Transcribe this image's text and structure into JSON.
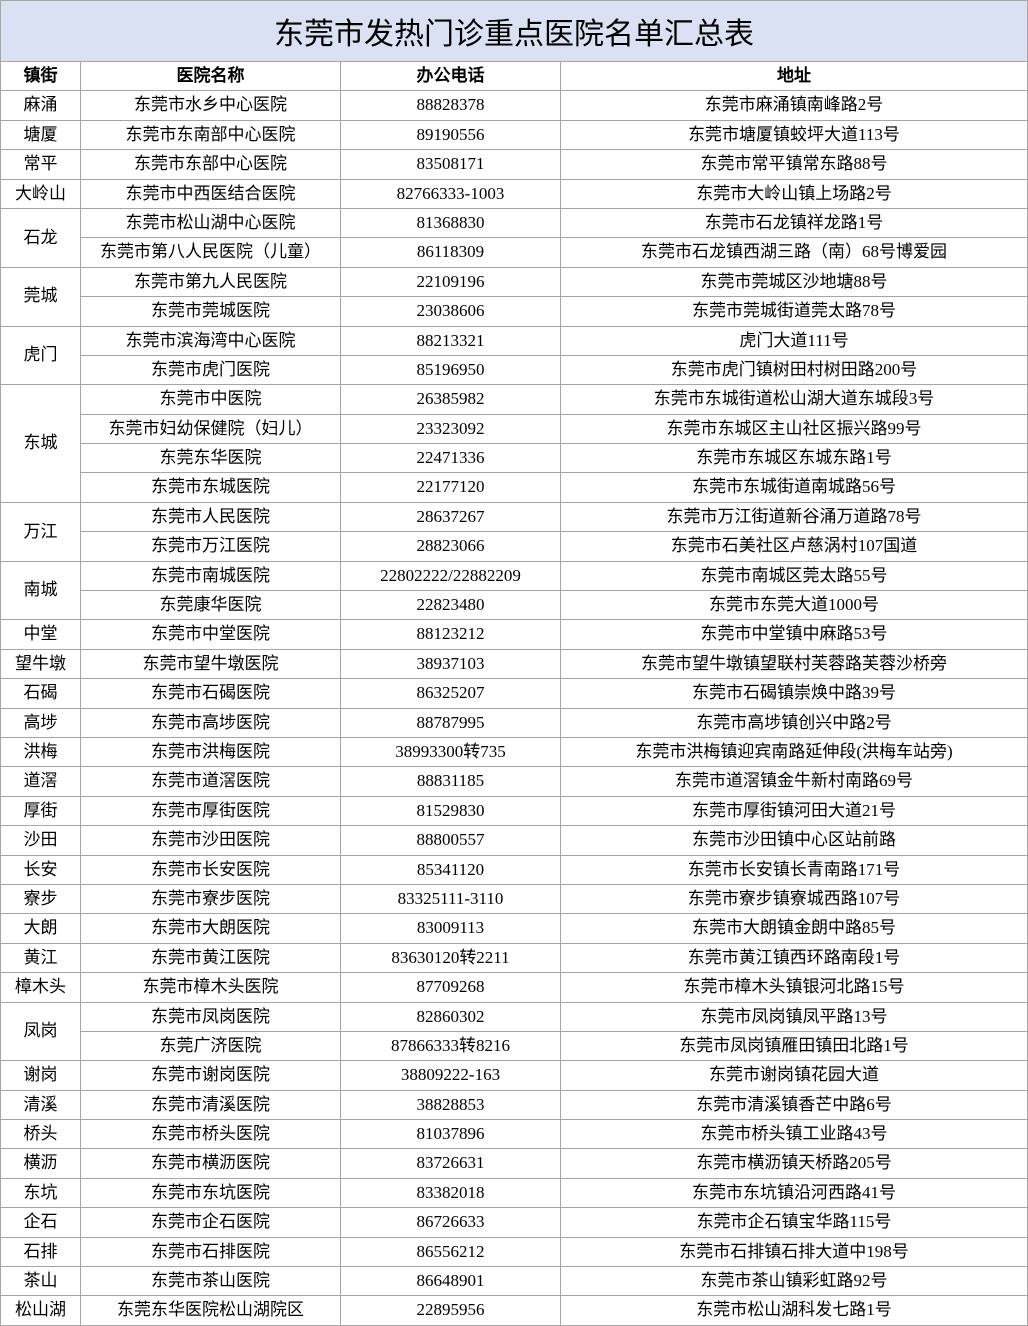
{
  "title": "东莞市发热门诊重点医院名单汇总表",
  "columns": [
    "镇街",
    "医院名称",
    "办公电话",
    "地址"
  ],
  "towns": [
    {
      "name": "麻涌",
      "hospitals": [
        {
          "name": "东莞市水乡中心医院",
          "phone": "88828378",
          "addr": "东莞市麻涌镇南峰路2号"
        }
      ]
    },
    {
      "name": "塘厦",
      "hospitals": [
        {
          "name": "东莞市东南部中心医院",
          "phone": "89190556",
          "addr": "东莞市塘厦镇蛟坪大道113号"
        }
      ]
    },
    {
      "name": "常平",
      "hospitals": [
        {
          "name": "东莞市东部中心医院",
          "phone": "83508171",
          "addr": "东莞市常平镇常东路88号"
        }
      ]
    },
    {
      "name": "大岭山",
      "hospitals": [
        {
          "name": "东莞市中西医结合医院",
          "phone": "82766333-1003",
          "addr": "东莞市大岭山镇上场路2号"
        }
      ]
    },
    {
      "name": "石龙",
      "hospitals": [
        {
          "name": "东莞市松山湖中心医院",
          "phone": "81368830",
          "addr": "东莞市石龙镇祥龙路1号"
        },
        {
          "name": "东莞市第八人民医院（儿童）",
          "phone": "86118309",
          "addr": "东莞市石龙镇西湖三路（南）68号博爱园"
        }
      ]
    },
    {
      "name": "莞城",
      "hospitals": [
        {
          "name": "东莞市第九人民医院",
          "phone": "22109196",
          "addr": "东莞市莞城区沙地塘88号"
        },
        {
          "name": "东莞市莞城医院",
          "phone": "23038606",
          "addr": "东莞市莞城街道莞太路78号"
        }
      ]
    },
    {
      "name": "虎门",
      "hospitals": [
        {
          "name": "东莞市滨海湾中心医院",
          "phone": "88213321",
          "addr": "虎门大道111号"
        },
        {
          "name": "东莞市虎门医院",
          "phone": "85196950",
          "addr": "东莞市虎门镇树田村树田路200号"
        }
      ]
    },
    {
      "name": "东城",
      "hospitals": [
        {
          "name": "东莞市中医院",
          "phone": "26385982",
          "addr": "东莞市东城街道松山湖大道东城段3号"
        },
        {
          "name": "东莞市妇幼保健院（妇儿）",
          "phone": "23323092",
          "addr": "东莞市东城区主山社区振兴路99号"
        },
        {
          "name": "东莞东华医院",
          "phone": "22471336",
          "addr": "东莞市东城区东城东路1号"
        },
        {
          "name": "东莞市东城医院",
          "phone": "22177120",
          "addr": "东莞市东城街道南城路56号"
        }
      ]
    },
    {
      "name": "万江",
      "hospitals": [
        {
          "name": "东莞市人民医院",
          "phone": "28637267",
          "addr": "东莞市万江街道新谷涌万道路78号"
        },
        {
          "name": "东莞市万江医院",
          "phone": "28823066",
          "addr": "东莞市石美社区卢慈涡村107国道"
        }
      ]
    },
    {
      "name": "南城",
      "hospitals": [
        {
          "name": "东莞市南城医院",
          "phone": "22802222/22882209",
          "addr": "东莞市南城区莞太路55号"
        },
        {
          "name": "东莞康华医院",
          "phone": "22823480",
          "addr": "东莞市东莞大道1000号"
        }
      ]
    },
    {
      "name": "中堂",
      "hospitals": [
        {
          "name": "东莞市中堂医院",
          "phone": "88123212",
          "addr": "东莞市中堂镇中麻路53号"
        }
      ]
    },
    {
      "name": "望牛墩",
      "hospitals": [
        {
          "name": "东莞市望牛墩医院",
          "phone": "38937103",
          "addr": "东莞市望牛墩镇望联村芙蓉路芙蓉沙桥旁"
        }
      ]
    },
    {
      "name": "石碣",
      "hospitals": [
        {
          "name": "东莞市石碣医院",
          "phone": "86325207",
          "addr": "东莞市石碣镇崇焕中路39号"
        }
      ]
    },
    {
      "name": "高埗",
      "hospitals": [
        {
          "name": "东莞市高埗医院",
          "phone": "88787995",
          "addr": "东莞市高埗镇创兴中路2号"
        }
      ]
    },
    {
      "name": "洪梅",
      "hospitals": [
        {
          "name": "东莞市洪梅医院",
          "phone": "38993300转735",
          "addr": "东莞市洪梅镇迎宾南路延伸段(洪梅车站旁)"
        }
      ]
    },
    {
      "name": "道滘",
      "hospitals": [
        {
          "name": "东莞市道滘医院",
          "phone": "88831185",
          "addr": "东莞市道滘镇金牛新村南路69号"
        }
      ]
    },
    {
      "name": "厚街",
      "hospitals": [
        {
          "name": "东莞市厚街医院",
          "phone": "81529830",
          "addr": "东莞市厚街镇河田大道21号"
        }
      ]
    },
    {
      "name": "沙田",
      "hospitals": [
        {
          "name": "东莞市沙田医院",
          "phone": "88800557",
          "addr": "东莞市沙田镇中心区站前路"
        }
      ]
    },
    {
      "name": "长安",
      "hospitals": [
        {
          "name": "东莞市长安医院",
          "phone": "85341120",
          "addr": "东莞市长安镇长青南路171号"
        }
      ]
    },
    {
      "name": "寮步",
      "hospitals": [
        {
          "name": "东莞市寮步医院",
          "phone": "83325111-3110",
          "addr": "东莞市寮步镇寮城西路107号"
        }
      ]
    },
    {
      "name": "大朗",
      "hospitals": [
        {
          "name": "东莞市大朗医院",
          "phone": "83009113",
          "addr": "东莞市大朗镇金朗中路85号"
        }
      ]
    },
    {
      "name": "黄江",
      "hospitals": [
        {
          "name": "东莞市黄江医院",
          "phone": "83630120转2211",
          "addr": "东莞市黄江镇西环路南段1号"
        }
      ]
    },
    {
      "name": "樟木头",
      "hospitals": [
        {
          "name": "东莞市樟木头医院",
          "phone": "87709268",
          "addr": "东莞市樟木头镇银河北路15号"
        }
      ]
    },
    {
      "name": "凤岗",
      "hospitals": [
        {
          "name": "东莞市凤岗医院",
          "phone": "82860302",
          "addr": "东莞市凤岗镇凤平路13号"
        },
        {
          "name": "东莞广济医院",
          "phone": "87866333转8216",
          "addr": "东莞市凤岗镇雁田镇田北路1号"
        }
      ]
    },
    {
      "name": "谢岗",
      "hospitals": [
        {
          "name": "东莞市谢岗医院",
          "phone": "38809222-163",
          "addr": "东莞市谢岗镇花园大道"
        }
      ]
    },
    {
      "name": "清溪",
      "hospitals": [
        {
          "name": "东莞市清溪医院",
          "phone": "38828853",
          "addr": "东莞市清溪镇香芒中路6号"
        }
      ]
    },
    {
      "name": "桥头",
      "hospitals": [
        {
          "name": "东莞市桥头医院",
          "phone": "81037896",
          "addr": "东莞市桥头镇工业路43号"
        }
      ]
    },
    {
      "name": "横沥",
      "hospitals": [
        {
          "name": "东莞市横沥医院",
          "phone": "83726631",
          "addr": "东莞市横沥镇天桥路205号"
        }
      ]
    },
    {
      "name": "东坑",
      "hospitals": [
        {
          "name": "东莞市东坑医院",
          "phone": "83382018",
          "addr": "东莞市东坑镇沿河西路41号"
        }
      ]
    },
    {
      "name": "企石",
      "hospitals": [
        {
          "name": "东莞市企石医院",
          "phone": "86726633",
          "addr": "东莞市企石镇宝华路115号"
        }
      ]
    },
    {
      "name": "石排",
      "hospitals": [
        {
          "name": "东莞市石排医院",
          "phone": "86556212",
          "addr": "东莞市石排镇石排大道中198号"
        }
      ]
    },
    {
      "name": "茶山",
      "hospitals": [
        {
          "name": "东莞市茶山医院",
          "phone": "86648901",
          "addr": "东莞市茶山镇彩虹路92号"
        }
      ]
    },
    {
      "name": "松山湖",
      "hospitals": [
        {
          "name": "东莞东华医院松山湖院区",
          "phone": "22895956",
          "addr": "东莞市松山湖科发七路1号"
        }
      ]
    }
  ]
}
